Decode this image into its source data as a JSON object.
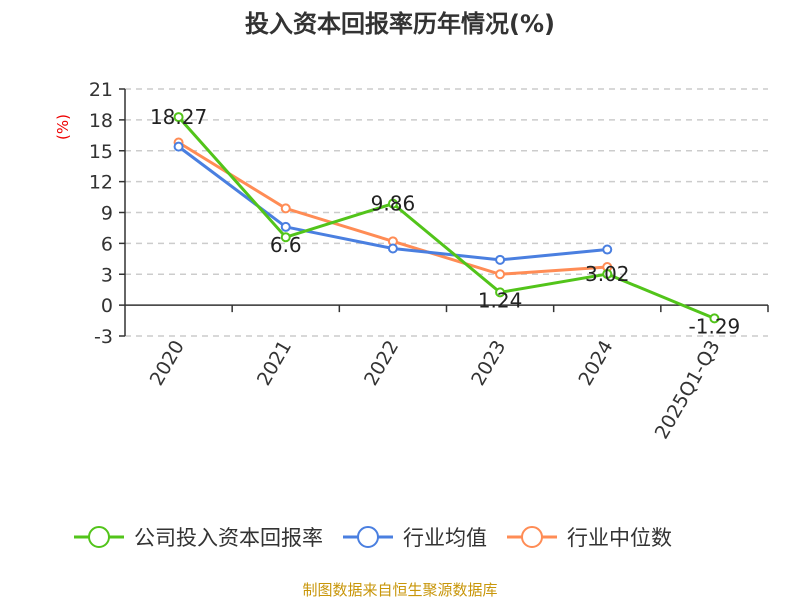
{
  "chart_data": {
    "type": "line",
    "title": "投入资本回报率历年情况(%)",
    "ylabel": "(%)",
    "xlabel": "",
    "ylim": [
      -3,
      21
    ],
    "yticks": [
      -3,
      0,
      3,
      6,
      9,
      12,
      15,
      18,
      21
    ],
    "grid": true,
    "legend_position": "bottom",
    "categories": [
      "2020",
      "2021",
      "2022",
      "2023",
      "2024",
      "2025Q1-Q3"
    ],
    "series": [
      {
        "name": "公司投入资本回报率",
        "color": "#52c41a",
        "values": [
          18.27,
          6.6,
          9.86,
          1.24,
          3.02,
          -1.29
        ],
        "labels": [
          "18.27",
          "6.6",
          "9.86",
          "1.24",
          "3.02",
          "-1.29"
        ]
      },
      {
        "name": "行业均值",
        "color": "#4a7fe0",
        "values": [
          15.4,
          7.6,
          5.5,
          4.4,
          5.4,
          null
        ]
      },
      {
        "name": "行业中位数",
        "color": "#ff8c55",
        "values": [
          15.8,
          9.4,
          6.2,
          3.0,
          3.7,
          null
        ]
      }
    ],
    "source": "制图数据来自恒生聚源数据库"
  }
}
